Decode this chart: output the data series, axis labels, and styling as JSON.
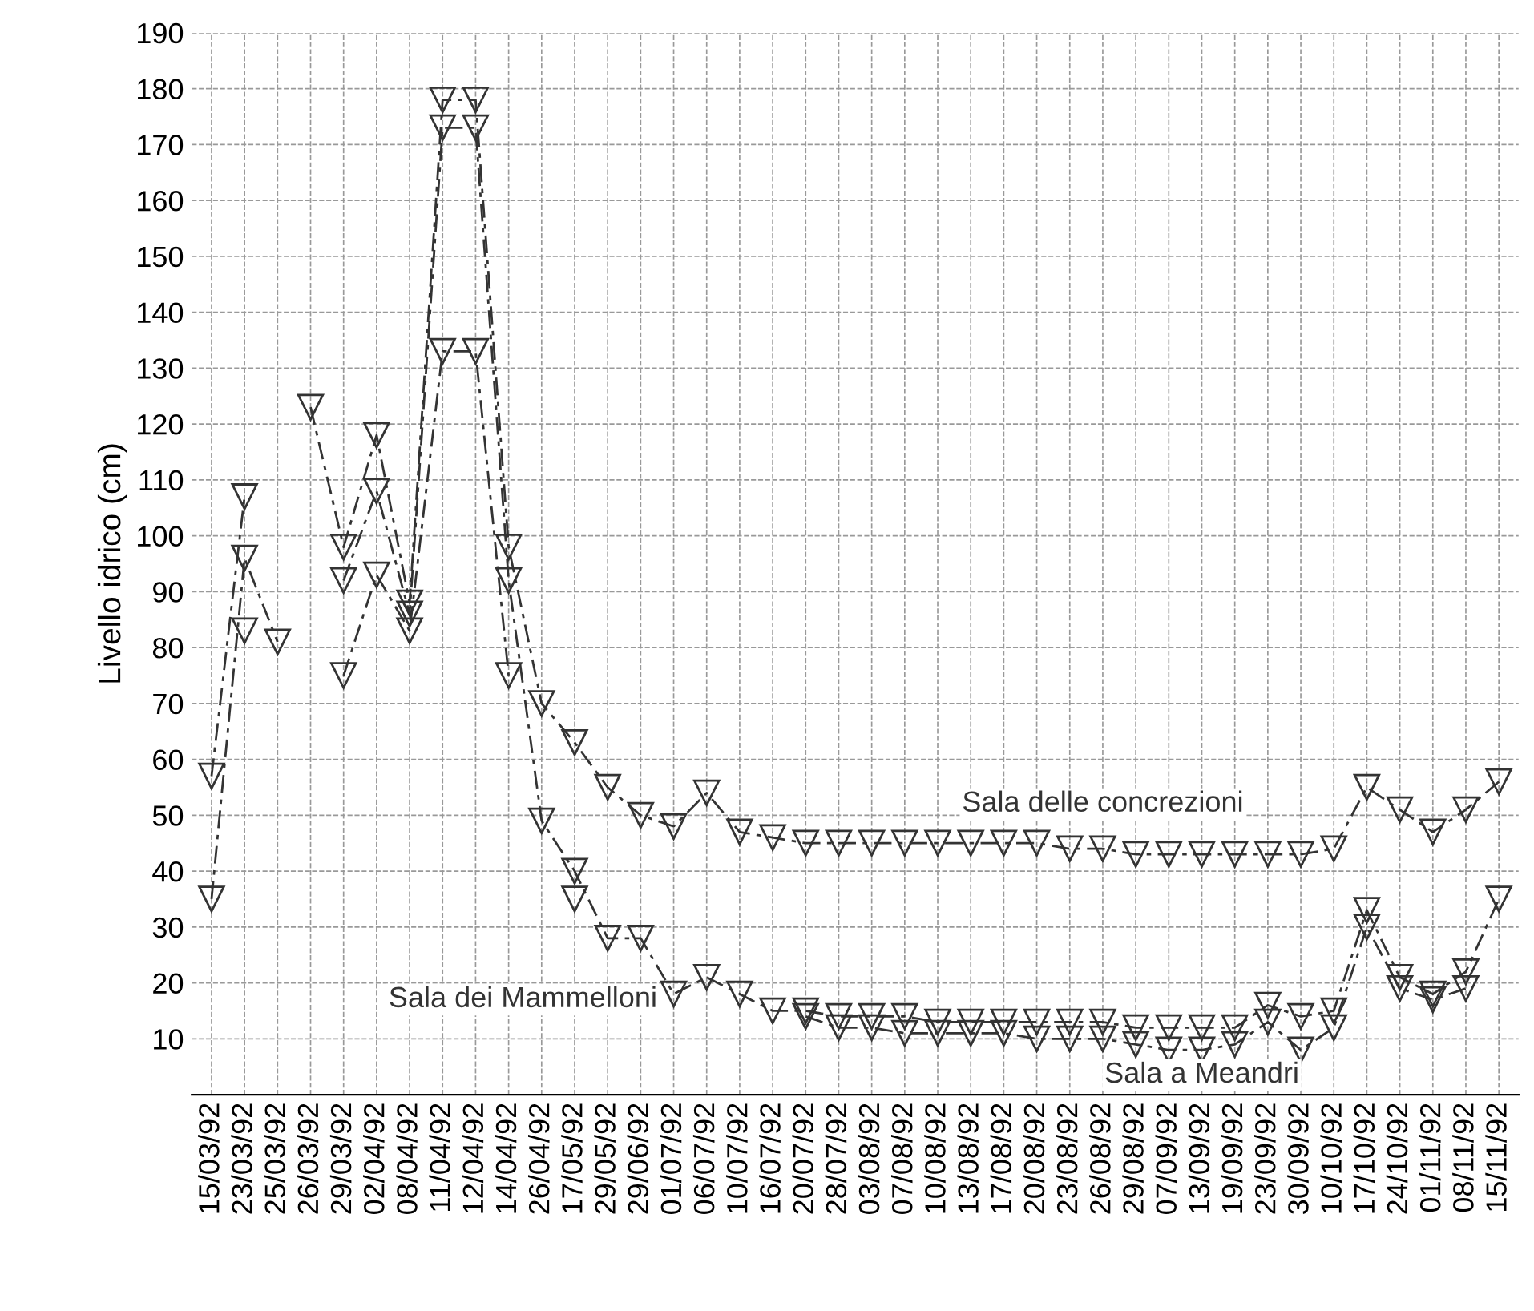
{
  "chart_data": {
    "type": "line",
    "ylabel": "Livello idrico (cm)",
    "categories": [
      "15/03/92",
      "23/03/92",
      "25/03/92",
      "26/03/92",
      "29/03/92",
      "02/04/92",
      "08/04/92",
      "11/04/92",
      "12/04/92",
      "14/04/92",
      "26/04/92",
      "17/05/92",
      "29/05/92",
      "29/06/92",
      "01/07/92",
      "06/07/92",
      "10/07/92",
      "16/07/92",
      "20/07/92",
      "28/07/92",
      "03/08/92",
      "07/08/92",
      "10/08/92",
      "13/08/92",
      "17/08/92",
      "20/08/92",
      "23/08/92",
      "26/08/92",
      "29/08/92",
      "07/09/92",
      "13/09/92",
      "19/09/92",
      "23/09/92",
      "30/09/92",
      "10/10/92",
      "17/10/92",
      "24/10/92",
      "01/11/92",
      "08/11/92",
      "15/11/92"
    ],
    "series": [
      {
        "name": "Sala delle concrezioni",
        "color": "#333333",
        "values": [
          57,
          107,
          null,
          123,
          98,
          118,
          88,
          178,
          178,
          98,
          70,
          63,
          55,
          50,
          48,
          54,
          47,
          46,
          45,
          45,
          45,
          45,
          45,
          45,
          45,
          45,
          44,
          44,
          43,
          43,
          43,
          43,
          43,
          43,
          44,
          55,
          51,
          47,
          51,
          56
        ]
      },
      {
        "name": "Sala dei Mammelloni",
        "color": "#333333",
        "values": [
          35,
          96,
          81,
          null,
          92,
          108,
          86,
          173,
          173,
          92,
          49,
          40,
          28,
          28,
          18,
          21,
          18,
          15,
          15,
          14,
          14,
          14,
          13,
          13,
          13,
          13,
          13,
          13,
          12,
          12,
          12,
          12,
          16,
          14,
          15,
          33,
          21,
          18,
          22,
          35
        ]
      },
      {
        "name": "Sala a Meandri",
        "color": "#333333",
        "values": [
          null,
          83,
          null,
          null,
          75,
          93,
          83,
          133,
          133,
          75,
          null,
          35,
          null,
          null,
          null,
          null,
          null,
          null,
          14,
          12,
          12,
          11,
          11,
          11,
          11,
          10,
          10,
          10,
          9,
          8,
          8,
          9,
          13,
          8,
          12,
          30,
          19,
          17,
          19,
          null
        ]
      }
    ],
    "ylim": [
      0,
      190
    ],
    "yticks": [
      10,
      20,
      30,
      40,
      50,
      60,
      70,
      80,
      90,
      100,
      110,
      120,
      130,
      140,
      150,
      160,
      170,
      180,
      190
    ],
    "grid": true,
    "legend": false,
    "marker": "triangle",
    "line_style": "dashed"
  }
}
